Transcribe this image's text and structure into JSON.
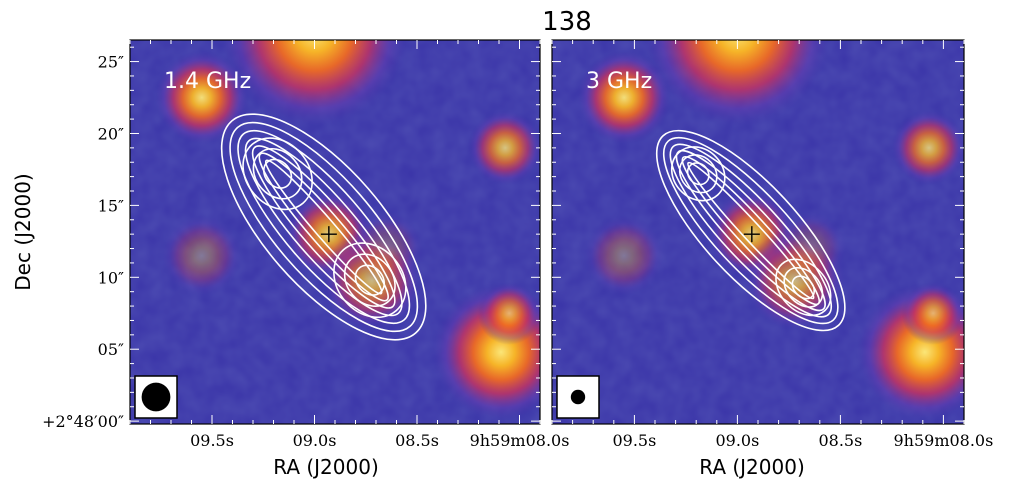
{
  "chart_data": {
    "type": "heatmap",
    "title": "138",
    "ylabel": "Dec (J2000)",
    "xlabel": "RA (J2000)",
    "y_ticks": [
      "+2°48′00″",
      "05″",
      "10″",
      "15″",
      "20″",
      "25″"
    ],
    "y_tick_values": [
      0,
      5,
      10,
      15,
      20,
      25
    ],
    "x_ticks": [
      "09.5s",
      "09.0s",
      "08.5s",
      "9h59m08.0s"
    ],
    "x_tick_values": [
      9.5,
      9.0,
      8.5,
      8.0
    ],
    "xlim": [
      9.9,
      7.9
    ],
    "ylim": [
      -0.2,
      26.5
    ],
    "panels": [
      {
        "label": "1.4 GHz",
        "beam_radius_arcsec": 1.0,
        "core": {
          "ra_s": 8.93,
          "dec_arcsec": 13.0
        },
        "contour_levels": 7,
        "lobes": [
          {
            "ra_s": 9.18,
            "dec_arcsec": 17.2,
            "width_arcsec": 5.4,
            "height_arcsec": 4.3
          },
          {
            "ra_s": 8.73,
            "dec_arcsec": 9.8,
            "width_arcsec": 5.6,
            "height_arcsec": 4.5
          }
        ]
      },
      {
        "label": "3 GHz",
        "beam_radius_arcsec": 0.5,
        "core": {
          "ra_s": 8.93,
          "dec_arcsec": 13.0
        },
        "contour_levels": 6,
        "lobes": [
          {
            "ra_s": 9.19,
            "dec_arcsec": 17.2,
            "width_arcsec": 4.0,
            "height_arcsec": 3.4
          },
          {
            "ra_s": 8.68,
            "dec_arcsec": 9.3,
            "width_arcsec": 4.4,
            "height_arcsec": 3.2
          }
        ]
      }
    ],
    "background_sources": [
      {
        "ra_s": 9.0,
        "dec_arcsec": 27.0,
        "peak": 1.0,
        "radius_arcsec": 3.0
      },
      {
        "ra_s": 9.55,
        "dec_arcsec": 22.5,
        "peak": 0.95,
        "radius_arcsec": 1.5
      },
      {
        "ra_s": 8.07,
        "dec_arcsec": 19.0,
        "peak": 0.8,
        "radius_arcsec": 1.2
      },
      {
        "ra_s": 8.93,
        "dec_arcsec": 13.0,
        "peak": 0.85,
        "radius_arcsec": 1.4
      },
      {
        "ra_s": 8.72,
        "dec_arcsec": 9.8,
        "peak": 0.75,
        "radius_arcsec": 1.6
      },
      {
        "ra_s": 8.09,
        "dec_arcsec": 4.8,
        "peak": 1.0,
        "radius_arcsec": 2.2
      },
      {
        "ra_s": 8.05,
        "dec_arcsec": 7.5,
        "peak": 0.7,
        "radius_arcsec": 1.0
      },
      {
        "ra_s": 9.55,
        "dec_arcsec": 11.5,
        "peak": 0.35,
        "radius_arcsec": 1.3
      },
      {
        "ra_s": 8.65,
        "dec_arcsec": 12.0,
        "peak": 0.25,
        "radius_arcsec": 1.2
      }
    ],
    "colormap": [
      "#1a1550",
      "#3a34a8",
      "#6a3ab0",
      "#c8325f",
      "#f06a22",
      "#f6b428",
      "#fbe678"
    ]
  }
}
